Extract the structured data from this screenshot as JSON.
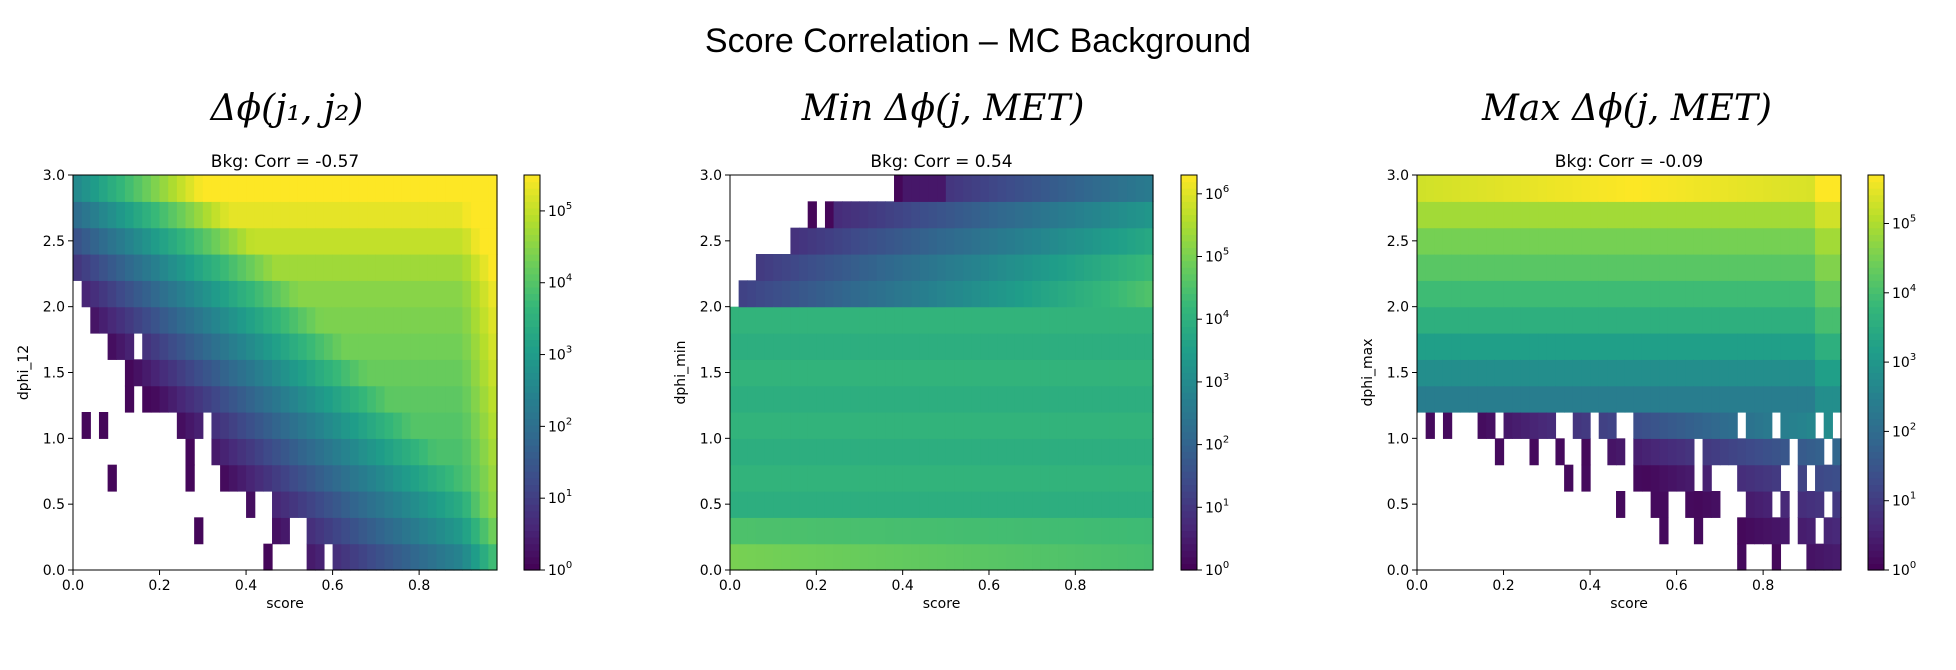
{
  "title": "Score Correlation – MC Background",
  "colors": {
    "viridis_low": "#440154",
    "viridis_high": "#fde725"
  },
  "chart_data": [
    {
      "type": "heatmap",
      "panel_title": "Δϕ(j₁, j₂)",
      "title": "Bkg: Corr = -0.57",
      "xlabel": "score",
      "ylabel": "dphi_12",
      "xlim": [
        0,
        0.98
      ],
      "ylim": [
        0,
        3.0
      ],
      "xticks": [
        "0.0",
        "0.2",
        "0.4",
        "0.6",
        "0.8"
      ],
      "yticks": [
        "0.0",
        "0.5",
        "1.0",
        "1.5",
        "2.0",
        "2.5",
        "3.0"
      ],
      "colorbar": {
        "scale": "log",
        "max_exponent": 5.5,
        "tick_exponents": [
          0,
          1,
          2,
          3,
          4,
          5
        ]
      },
      "pattern": "neg"
    },
    {
      "type": "heatmap",
      "panel_title": "Min Δϕ(j, MET)",
      "title": "Bkg: Corr = 0.54",
      "xlabel": "score",
      "ylabel": "dphi_min",
      "xlim": [
        0,
        0.98
      ],
      "ylim": [
        0,
        3.0
      ],
      "xticks": [
        "0.0",
        "0.2",
        "0.4",
        "0.6",
        "0.8"
      ],
      "yticks": [
        "0.0",
        "0.5",
        "1.0",
        "1.5",
        "2.0",
        "2.5",
        "3.0"
      ],
      "colorbar": {
        "scale": "log",
        "max_exponent": 6.3,
        "tick_exponents": [
          0,
          1,
          2,
          3,
          4,
          5,
          6
        ]
      },
      "pattern": "min"
    },
    {
      "type": "heatmap",
      "panel_title": "Max Δϕ(j, MET)",
      "title": "Bkg: Corr = -0.09",
      "xlabel": "score",
      "ylabel": "dphi_max",
      "xlim": [
        0,
        0.98
      ],
      "ylim": [
        0,
        3.0
      ],
      "xticks": [
        "0.0",
        "0.2",
        "0.4",
        "0.6",
        "0.8"
      ],
      "yticks": [
        "0.0",
        "0.5",
        "1.0",
        "1.5",
        "2.0",
        "2.5",
        "3.0"
      ],
      "colorbar": {
        "scale": "log",
        "max_exponent": 5.7,
        "tick_exponents": [
          0,
          1,
          2,
          3,
          4,
          5
        ]
      },
      "pattern": "max"
    }
  ]
}
